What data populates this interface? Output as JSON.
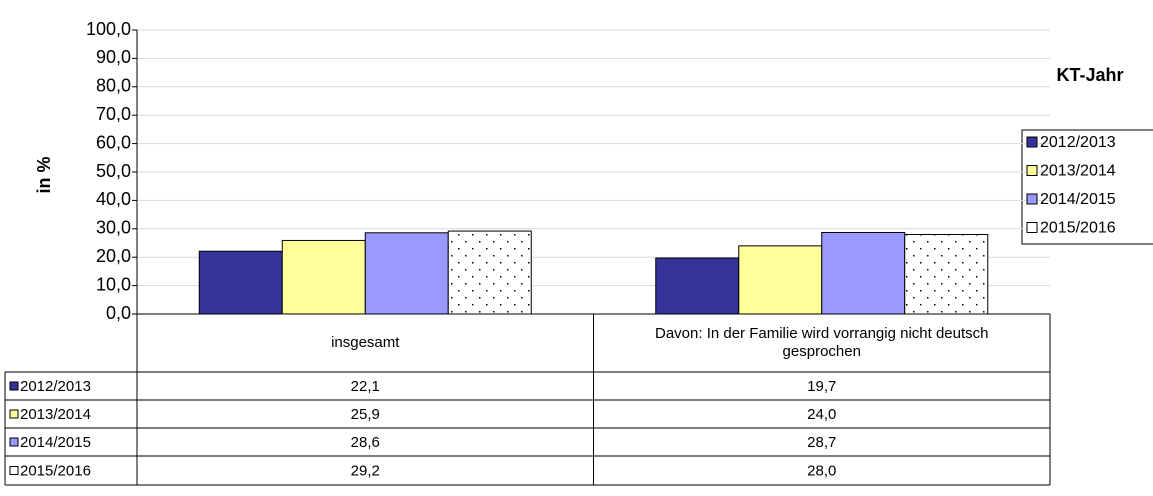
{
  "chart_data": {
    "type": "bar",
    "y_label": "in %",
    "legend_title": "KT-Jahr",
    "categories": [
      "insgesamt",
      "Davon: In der Familie wird vorrangig nicht deutsch gesprochen"
    ],
    "series": [
      {
        "name": "2012/2013",
        "color": "#333399",
        "values": [
          22.1,
          19.7
        ],
        "value_labels": [
          "22,1",
          "19,7"
        ]
      },
      {
        "name": "2013/2014",
        "color": "#ffff99",
        "values": [
          25.9,
          24.0
        ],
        "value_labels": [
          "25,9",
          "24,0"
        ]
      },
      {
        "name": "2014/2015",
        "color": "#9999ff",
        "values": [
          28.6,
          28.7
        ],
        "value_labels": [
          "28,6",
          "28,7"
        ]
      },
      {
        "name": "2015/2016",
        "color": "#ffffff",
        "values": [
          29.2,
          28.0
        ],
        "value_labels": [
          "29,2",
          "28,0"
        ]
      }
    ],
    "ylim": [
      0,
      100
    ],
    "yticks": [
      {
        "value": 0,
        "label": "0,0"
      },
      {
        "value": 10,
        "label": "10,0"
      },
      {
        "value": 20,
        "label": "20,0"
      },
      {
        "value": 30,
        "label": "30,0"
      },
      {
        "value": 40,
        "label": "40,0"
      },
      {
        "value": 50,
        "label": "50,0"
      },
      {
        "value": 60,
        "label": "60,0"
      },
      {
        "value": 70,
        "label": "70,0"
      },
      {
        "value": 80,
        "label": "80,0"
      },
      {
        "value": 90,
        "label": "90,0"
      },
      {
        "value": 100,
        "label": "100,0"
      }
    ],
    "grid": true,
    "legend": "right"
  }
}
